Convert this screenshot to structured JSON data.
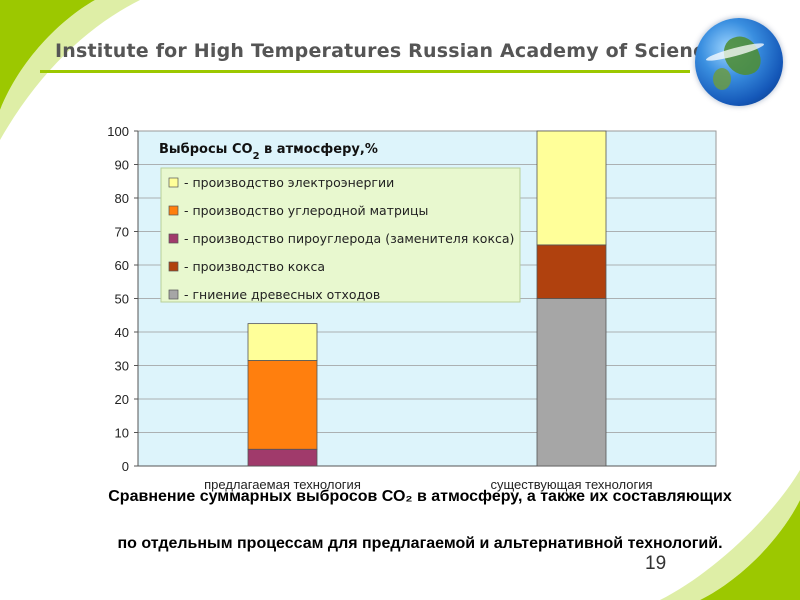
{
  "header": {
    "title": "Institute for High Temperatures Russian Academy of Sciences"
  },
  "colors": {
    "accent_green": "#9cc800",
    "plot_bg": "#ddf4fb",
    "legend_bg": "#e8f8cf"
  },
  "chart_data": {
    "type": "bar",
    "stacked": true,
    "title": "Выбросы CO2 в атмосферу,%",
    "ylim": [
      0,
      100
    ],
    "yticks": [
      0,
      10,
      20,
      30,
      40,
      50,
      60,
      70,
      80,
      90,
      100
    ],
    "grid": true,
    "legend_position": "top-left",
    "categories": [
      "предлагаемая технология",
      "существующая технология"
    ],
    "series": [
      {
        "name": "- гниение древесных отходов",
        "color": "#a6a6a6",
        "values": [
          0,
          50
        ]
      },
      {
        "name": "- производство кокса",
        "color": "#b0410e",
        "values": [
          0,
          16
        ]
      },
      {
        "name": "- производство пироуглерода (заменителя кокса)",
        "color": "#a03a6b",
        "values": [
          5,
          0
        ]
      },
      {
        "name": "- производство углеродной матрицы",
        "color": "#ff7f0e",
        "values": [
          26.5,
          0
        ]
      },
      {
        "name": "- производство электроэнергии",
        "color": "#ffff99",
        "values": [
          11,
          34
        ]
      }
    ],
    "legend_order": [
      4,
      3,
      2,
      1,
      0
    ]
  },
  "caption": {
    "line1": "Сравнение суммарных выбросов СО₂ в атмосферу, а также их составляющих",
    "line2": "по отдельным процессам для предлагаемой и альтернативной технологий."
  },
  "page_number": "19"
}
